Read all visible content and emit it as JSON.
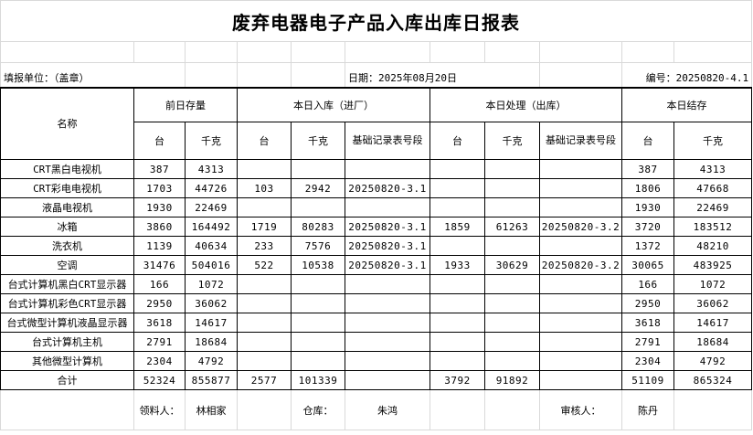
{
  "title": "废弃电器电子产品入库出库日报表",
  "info": {
    "unit_label": "填报单位：（盖章）",
    "date_label": "日期：2025年08月20日",
    "number_label": "编号：20250820-4.1"
  },
  "headers": {
    "name": "名称",
    "groups": [
      "前日存量",
      "本日入库（进厂）",
      "本日处理（出库）",
      "本日结存"
    ],
    "unit_tai": "台",
    "unit_kg": "千克",
    "record_no": "基础记录表号段"
  },
  "rows": [
    {
      "name": "CRT黑白电视机",
      "prev_tai": "387",
      "prev_kg": "4313",
      "in_tai": "",
      "in_kg": "",
      "in_rec": "",
      "out_tai": "",
      "out_kg": "",
      "out_rec": "",
      "end_tai": "387",
      "end_kg": "4313"
    },
    {
      "name": "CRT彩电电视机",
      "prev_tai": "1703",
      "prev_kg": "44726",
      "in_tai": "103",
      "in_kg": "2942",
      "in_rec": "20250820-3.1",
      "out_tai": "",
      "out_kg": "",
      "out_rec": "",
      "end_tai": "1806",
      "end_kg": "47668"
    },
    {
      "name": "液晶电视机",
      "prev_tai": "1930",
      "prev_kg": "22469",
      "in_tai": "",
      "in_kg": "",
      "in_rec": "",
      "out_tai": "",
      "out_kg": "",
      "out_rec": "",
      "end_tai": "1930",
      "end_kg": "22469"
    },
    {
      "name": "冰箱",
      "prev_tai": "3860",
      "prev_kg": "164492",
      "in_tai": "1719",
      "in_kg": "80283",
      "in_rec": "20250820-3.1",
      "out_tai": "1859",
      "out_kg": "61263",
      "out_rec": "20250820-3.2",
      "end_tai": "3720",
      "end_kg": "183512"
    },
    {
      "name": "洗衣机",
      "prev_tai": "1139",
      "prev_kg": "40634",
      "in_tai": "233",
      "in_kg": "7576",
      "in_rec": "20250820-3.1",
      "out_tai": "",
      "out_kg": "",
      "out_rec": "",
      "end_tai": "1372",
      "end_kg": "48210"
    },
    {
      "name": "空调",
      "prev_tai": "31476",
      "prev_kg": "504016",
      "in_tai": "522",
      "in_kg": "10538",
      "in_rec": "20250820-3.1",
      "out_tai": "1933",
      "out_kg": "30629",
      "out_rec": "20250820-3.2",
      "end_tai": "30065",
      "end_kg": "483925"
    },
    {
      "name": "台式计算机黑白CRT显示器",
      "prev_tai": "166",
      "prev_kg": "1072",
      "in_tai": "",
      "in_kg": "",
      "in_rec": "",
      "out_tai": "",
      "out_kg": "",
      "out_rec": "",
      "end_tai": "166",
      "end_kg": "1072"
    },
    {
      "name": "台式计算机彩色CRT显示器",
      "prev_tai": "2950",
      "prev_kg": "36062",
      "in_tai": "",
      "in_kg": "",
      "in_rec": "",
      "out_tai": "",
      "out_kg": "",
      "out_rec": "",
      "end_tai": "2950",
      "end_kg": "36062"
    },
    {
      "name": "台式微型计算机液晶显示器",
      "prev_tai": "3618",
      "prev_kg": "14617",
      "in_tai": "",
      "in_kg": "",
      "in_rec": "",
      "out_tai": "",
      "out_kg": "",
      "out_rec": "",
      "end_tai": "3618",
      "end_kg": "14617"
    },
    {
      "name": "台式计算机主机",
      "prev_tai": "2791",
      "prev_kg": "18684",
      "in_tai": "",
      "in_kg": "",
      "in_rec": "",
      "out_tai": "",
      "out_kg": "",
      "out_rec": "",
      "end_tai": "2791",
      "end_kg": "18684"
    },
    {
      "name": "其他微型计算机",
      "prev_tai": "2304",
      "prev_kg": "4792",
      "in_tai": "",
      "in_kg": "",
      "in_rec": "",
      "out_tai": "",
      "out_kg": "",
      "out_rec": "",
      "end_tai": "2304",
      "end_kg": "4792"
    },
    {
      "name": "合计",
      "prev_tai": "52324",
      "prev_kg": "855877",
      "in_tai": "2577",
      "in_kg": "101339",
      "in_rec": "",
      "out_tai": "3792",
      "out_kg": "91892",
      "out_rec": "",
      "end_tai": "51109",
      "end_kg": "865324"
    }
  ],
  "footer": {
    "receiver_label": "领料人：",
    "receiver": "林相家",
    "warehouse_label": "仓库：",
    "warehouse": "朱鸿",
    "reviewer_label": "审核人：",
    "reviewer": "陈丹"
  }
}
